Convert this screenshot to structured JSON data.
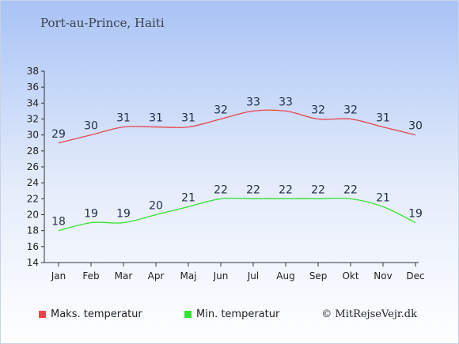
{
  "page": {
    "title": "Port-au-Prince, Haiti",
    "credit": "© MitRejseVejr.dk"
  },
  "colors": {
    "max": "#e8454b",
    "min": "#33e233",
    "axis": "#333333",
    "label": "#1f2e4a"
  },
  "chart_data": {
    "type": "line",
    "title": "",
    "xlabel": "",
    "ylabel": "",
    "categories": [
      "Jan",
      "Feb",
      "Mar",
      "Apr",
      "Maj",
      "Jun",
      "Jul",
      "Aug",
      "Sep",
      "Okt",
      "Nov",
      "Dec"
    ],
    "yticks": [
      14,
      16,
      18,
      20,
      22,
      24,
      26,
      28,
      30,
      32,
      34,
      36,
      38
    ],
    "ylim": [
      14,
      38
    ],
    "grid": false,
    "legend_position": "bottom",
    "series": [
      {
        "name": "Maks. temperatur",
        "color": "#e8454b",
        "values": [
          29,
          30,
          31,
          31,
          31,
          32,
          33,
          33,
          32,
          32,
          31,
          30
        ]
      },
      {
        "name": "Min. temperatur",
        "color": "#33e233",
        "values": [
          18,
          19,
          19,
          20,
          21,
          22,
          22,
          22,
          22,
          22,
          21,
          19
        ]
      }
    ]
  }
}
